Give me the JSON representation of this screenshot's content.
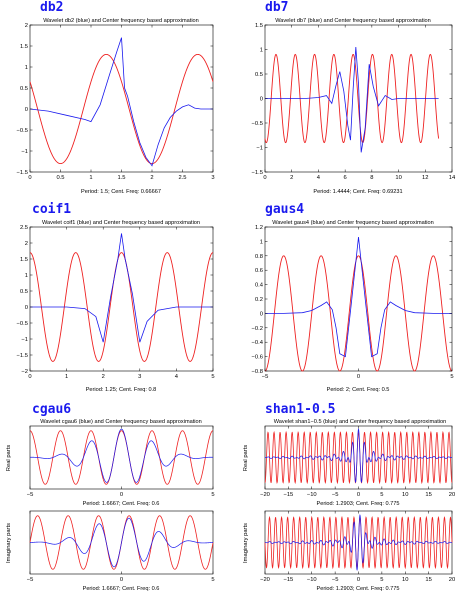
{
  "figure": {
    "colors": {
      "wavelet": "#1a1aee",
      "approximation": "#ee2222",
      "wavelet_name": "#1a1aee",
      "background": "#ffffff"
    }
  },
  "chart_data": [
    {
      "type": "line",
      "wavelet": "db2",
      "title": "Wavelet db2 (blue) and Center frequency based approximation",
      "xlabel": "Period: 1.5; Cent. Freq: 0.66667",
      "ylabel": "",
      "xlim": [
        0,
        3
      ],
      "ylim": [
        -1.5,
        2
      ],
      "xticks": [
        0,
        0.5,
        1,
        1.5,
        2,
        2.5,
        3
      ],
      "yticks": [
        -1.5,
        -1,
        -0.5,
        0,
        0.5,
        1,
        1.5,
        2
      ],
      "approximation": {
        "period": 1.5,
        "amplitude": 1.3,
        "phase_center": 1.25,
        "x_range": [
          0,
          3
        ]
      },
      "series": [
        {
          "role": "wavelet",
          "x": [
            0,
            0.3,
            0.6,
            0.9,
            1.0,
            1.15,
            1.3,
            1.42,
            1.5,
            1.55,
            1.6,
            1.7,
            1.8,
            1.9,
            2.0,
            2.1,
            2.2,
            2.3,
            2.4,
            2.5,
            2.6,
            2.7,
            2.8,
            3.0
          ],
          "y": [
            0.0,
            -0.05,
            -0.15,
            -0.25,
            -0.3,
            0.1,
            0.8,
            1.35,
            1.7,
            0.5,
            0.3,
            -0.3,
            -0.8,
            -1.15,
            -1.35,
            -0.85,
            -0.45,
            -0.2,
            -0.05,
            0.05,
            0.1,
            0.02,
            0.0,
            0.0
          ]
        }
      ]
    },
    {
      "type": "line",
      "wavelet": "db7",
      "title": "Wavelet db7 (blue) and Center frequency based approximation",
      "xlabel": "Period: 1.4444; Cent. Freq: 0.69231",
      "ylabel": "",
      "xlim": [
        0,
        14
      ],
      "ylim": [
        -1.5,
        1.5
      ],
      "xticks": [
        0,
        2,
        4,
        6,
        8,
        10,
        12,
        14
      ],
      "yticks": [
        -1.5,
        -1,
        -0.5,
        0,
        0.5,
        1,
        1.5
      ],
      "approximation": {
        "period": 1.4444,
        "amplitude": 0.9,
        "phase_center": 6.6,
        "x_range": [
          0,
          13
        ]
      },
      "series": [
        {
          "role": "wavelet",
          "x": [
            0,
            3.0,
            4.0,
            4.6,
            5.0,
            5.3,
            5.6,
            5.9,
            6.2,
            6.4,
            6.6,
            6.8,
            7.0,
            7.2,
            7.5,
            7.8,
            8.1,
            8.5,
            9.0,
            9.5,
            10.0,
            13.0
          ],
          "y": [
            0,
            0,
            0.02,
            0.06,
            -0.1,
            0.25,
            0.55,
            0.15,
            -0.55,
            -0.85,
            0.2,
            1.05,
            0.3,
            -1.1,
            -0.6,
            0.7,
            0.25,
            -0.15,
            0.06,
            -0.02,
            0,
            0
          ]
        }
      ]
    },
    {
      "type": "line",
      "wavelet": "coif1",
      "title": "Wavelet coif1 (blue) and Center frequency based approximation",
      "xlabel": "Period: 1.25; Cent. Freq: 0.8",
      "ylabel": "",
      "xlim": [
        0,
        5
      ],
      "ylim": [
        -2,
        2.5
      ],
      "xticks": [
        0,
        1,
        2,
        3,
        4,
        5
      ],
      "yticks": [
        -2,
        -1.5,
        -1,
        -0.5,
        0,
        0.5,
        1,
        1.5,
        2,
        2.5
      ],
      "approximation": {
        "period": 1.25,
        "amplitude": 1.7,
        "phase_center": 2.5,
        "x_range": [
          0,
          5
        ]
      },
      "series": [
        {
          "role": "wavelet",
          "x": [
            0,
            1.0,
            1.5,
            1.8,
            2.0,
            2.2,
            2.4,
            2.5,
            2.6,
            2.8,
            3.0,
            3.2,
            3.5,
            4.0,
            5.0
          ],
          "y": [
            0,
            0,
            -0.05,
            -0.3,
            -1.1,
            0.3,
            1.5,
            2.3,
            1.5,
            0.4,
            -1.1,
            -0.45,
            -0.1,
            0,
            0
          ]
        }
      ]
    },
    {
      "type": "line",
      "wavelet": "gaus4",
      "title": "Wavelet gaus4 (blue) and Center frequency based approximation",
      "xlabel": "Period: 2; Cent. Freq: 0.5",
      "ylabel": "",
      "xlim": [
        -5,
        5
      ],
      "ylim": [
        -0.8,
        1.2
      ],
      "xticks": [
        -5,
        0,
        5
      ],
      "yticks": [
        -0.8,
        -0.6,
        -0.4,
        -0.2,
        0,
        0.2,
        0.4,
        0.6,
        0.8,
        1,
        1.2
      ],
      "approximation": {
        "period": 2,
        "amplitude": 0.8,
        "phase_center": 0,
        "x_range": [
          -5,
          5
        ]
      },
      "series": [
        {
          "role": "wavelet",
          "x": [
            -5,
            -4,
            -3,
            -2.5,
            -2,
            -1.7,
            -1.4,
            -1.2,
            -1.0,
            -0.7,
            -0.4,
            0,
            0.4,
            0.7,
            1.0,
            1.2,
            1.4,
            1.7,
            2,
            2.5,
            3,
            4,
            5
          ],
          "y": [
            0,
            0,
            0.01,
            0.04,
            0.11,
            0.16,
            0.05,
            -0.2,
            -0.56,
            -0.6,
            0.1,
            1.06,
            0.1,
            -0.6,
            -0.56,
            -0.2,
            0.05,
            0.16,
            0.11,
            0.04,
            0.01,
            0,
            0
          ]
        }
      ]
    },
    {
      "type": "line",
      "wavelet": "cgau6",
      "title": "",
      "panels": [
        {
          "title": "Wavelet cgau6 (blue) and Center frequency based approximation",
          "xlabel": "Period: 1.6667; Cent. Freq: 0.6",
          "ylabel": "Real parts",
          "xlim": [
            -5,
            5
          ],
          "ylim": [
            -1,
            1
          ],
          "xticks": [
            -5,
            0,
            5
          ],
          "approximation": {
            "period": 1.6667,
            "amplitude": 0.85,
            "phase_center": 0,
            "shape": "cos",
            "x_range": [
              -5,
              5
            ]
          },
          "wavelet": {
            "envelope": 1.6,
            "carrier_period": 1.6667,
            "shape": "cos",
            "amplitude": 0.9
          }
        },
        {
          "title": "",
          "xlabel": "Period: 1.6667; Cent. Freq: 0.6",
          "ylabel": "Imaginary parts",
          "xlim": [
            -5,
            5
          ],
          "ylim": [
            -1,
            1
          ],
          "xticks": [
            -5,
            0,
            5
          ],
          "approximation": {
            "period": 1.6667,
            "amplitude": 0.85,
            "phase_center": 0,
            "shape": "sin",
            "x_range": [
              -5,
              5
            ]
          },
          "wavelet": {
            "envelope": 1.6,
            "carrier_period": 1.6667,
            "shape": "sin",
            "amplitude": 0.8
          }
        }
      ]
    },
    {
      "type": "line",
      "wavelet": "shan1-0.5",
      "title": "",
      "panels": [
        {
          "title": "Wavelet shan1−0.5 (blue) and Center frequency based approximation",
          "xlabel": "Period: 1.2903; Cent. Freq: 0.775",
          "ylabel": "Real parts",
          "xlim": [
            -20,
            20
          ],
          "ylim": [
            -1,
            1
          ],
          "xticks": [
            -20,
            -15,
            -10,
            -5,
            0,
            5,
            10,
            15,
            20
          ],
          "approximation": {
            "period": 1.2903,
            "amplitude": 0.8,
            "phase_center": 0,
            "shape": "cos",
            "x_range": [
              -20,
              20
            ]
          },
          "wavelet": {
            "sinc_scale": 1,
            "carrier_period": 1.2903,
            "shape": "cos",
            "amplitude": 0.9
          }
        },
        {
          "title": "",
          "xlabel": "Period: 1.2903; Cent. Freq: 0.775",
          "ylabel": "Imaginary parts",
          "xlim": [
            -20,
            20
          ],
          "ylim": [
            -1,
            1
          ],
          "xticks": [
            -20,
            -15,
            -10,
            -5,
            0,
            5,
            10,
            15,
            20
          ],
          "approximation": {
            "period": 1.2903,
            "amplitude": 0.8,
            "phase_center": 0,
            "shape": "sin",
            "x_range": [
              -20,
              20
            ]
          },
          "wavelet": {
            "sinc_scale": 1,
            "carrier_period": 1.2903,
            "shape": "sin",
            "amplitude": 0.9
          }
        }
      ]
    }
  ]
}
